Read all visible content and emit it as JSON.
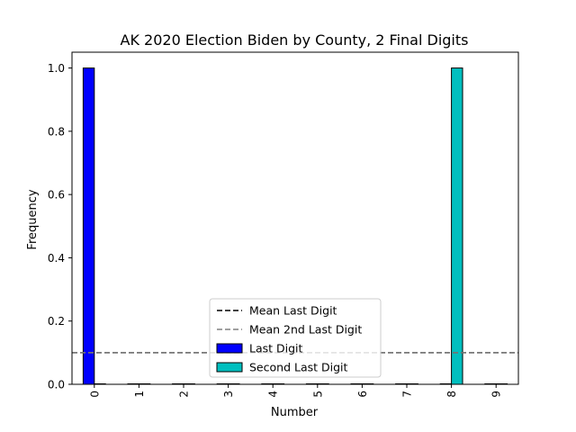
{
  "chart_data": {
    "type": "bar",
    "title": "AK 2020 Election Biden by County, 2 Final Digits",
    "xlabel": "Number",
    "ylabel": "Frequency",
    "ylim": [
      0,
      1.05
    ],
    "yticks": [
      "0.0",
      "0.2",
      "0.4",
      "0.6",
      "0.8",
      "1.0"
    ],
    "ytick_values": [
      0,
      0.2,
      0.4,
      0.6,
      0.8,
      1.0
    ],
    "categories": [
      "0",
      "1",
      "2",
      "3",
      "4",
      "5",
      "6",
      "7",
      "8",
      "9"
    ],
    "series": [
      {
        "name": "Last Digit",
        "color": "#0000ff",
        "values": [
          1,
          0,
          0,
          0,
          0,
          0,
          0,
          0,
          0,
          0
        ]
      },
      {
        "name": "Second Last Digit",
        "color": "#00bfbf",
        "values": [
          0,
          0,
          0,
          0,
          0,
          0,
          0,
          0,
          1,
          0
        ]
      }
    ],
    "reference_lines": [
      {
        "name": "Mean Last Digit",
        "value": 0.1,
        "color": "#000000",
        "style": "dashed"
      },
      {
        "name": "Mean 2nd Last Digit",
        "value": 0.1,
        "color": "#808080",
        "style": "dashed"
      }
    ],
    "grid": false,
    "legend_position": "lower-center"
  }
}
